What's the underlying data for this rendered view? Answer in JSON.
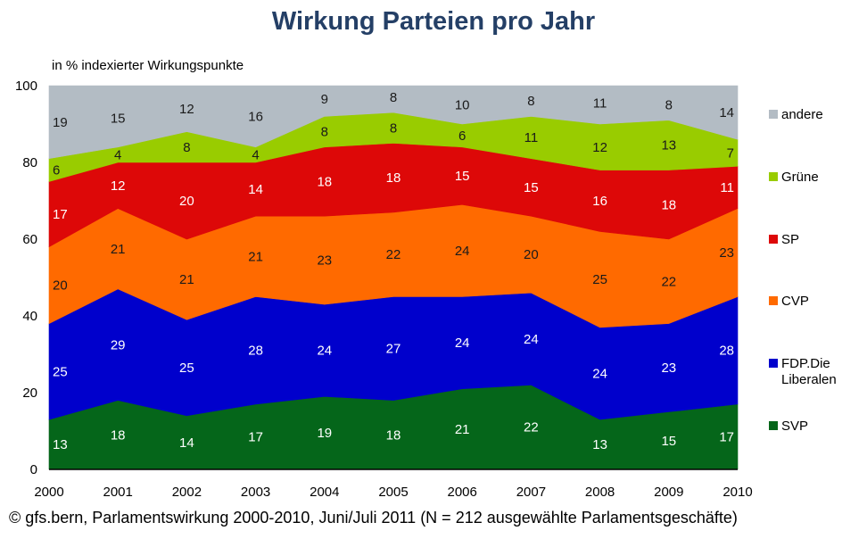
{
  "chart_data": {
    "type": "area",
    "stacked": true,
    "title": "Wirkung Parteien pro Jahr",
    "ylabel": "in % indexierter Wirkungspunkte",
    "xlabel": "",
    "ylim": [
      0,
      100
    ],
    "yticks": [
      "0",
      "20",
      "40",
      "60",
      "80",
      "100"
    ],
    "categories": [
      "2000",
      "2001",
      "2002",
      "2003",
      "2004",
      "2005",
      "2006",
      "2007",
      "2008",
      "2009",
      "2010"
    ],
    "series": [
      {
        "name": "SVP",
        "color": "#05661a",
        "label_color": "#ffffff",
        "values": [
          13,
          18,
          14,
          17,
          19,
          18,
          21,
          22,
          13,
          15,
          17
        ]
      },
      {
        "name": "FDP.Die Liberalen",
        "legend_lines": [
          "FDP.Die",
          "Liberalen"
        ],
        "color": "#0000cc",
        "label_color": "#ffffff",
        "values": [
          25,
          29,
          25,
          28,
          24,
          27,
          24,
          24,
          24,
          23,
          28
        ]
      },
      {
        "name": "CVP",
        "color": "#ff6a00",
        "label_color": "#1a1a1a",
        "values": [
          20,
          21,
          21,
          21,
          23,
          22,
          24,
          20,
          25,
          22,
          23
        ]
      },
      {
        "name": "SP",
        "color": "#dd0808",
        "label_color": "#ffffff",
        "values": [
          17,
          12,
          20,
          14,
          18,
          18,
          15,
          15,
          16,
          18,
          11
        ]
      },
      {
        "name": "Grüne",
        "color": "#99cc00",
        "label_color": "#1a1a1a",
        "values": [
          6,
          4,
          8,
          4,
          8,
          8,
          6,
          11,
          12,
          13,
          7
        ]
      },
      {
        "name": "andere",
        "color": "#b3bcc4",
        "label_color": "#1a1a1a",
        "values": [
          19,
          15,
          12,
          16,
          9,
          8,
          10,
          8,
          11,
          8,
          14
        ]
      }
    ],
    "legend": "right",
    "grid": false
  },
  "footer": {
    "source": "© gfs.bern, Parlamentswirkung 2000-2010, Juni/Juli 2011 (N = 212 ausgewählte Parlamentsgeschäfte)"
  }
}
